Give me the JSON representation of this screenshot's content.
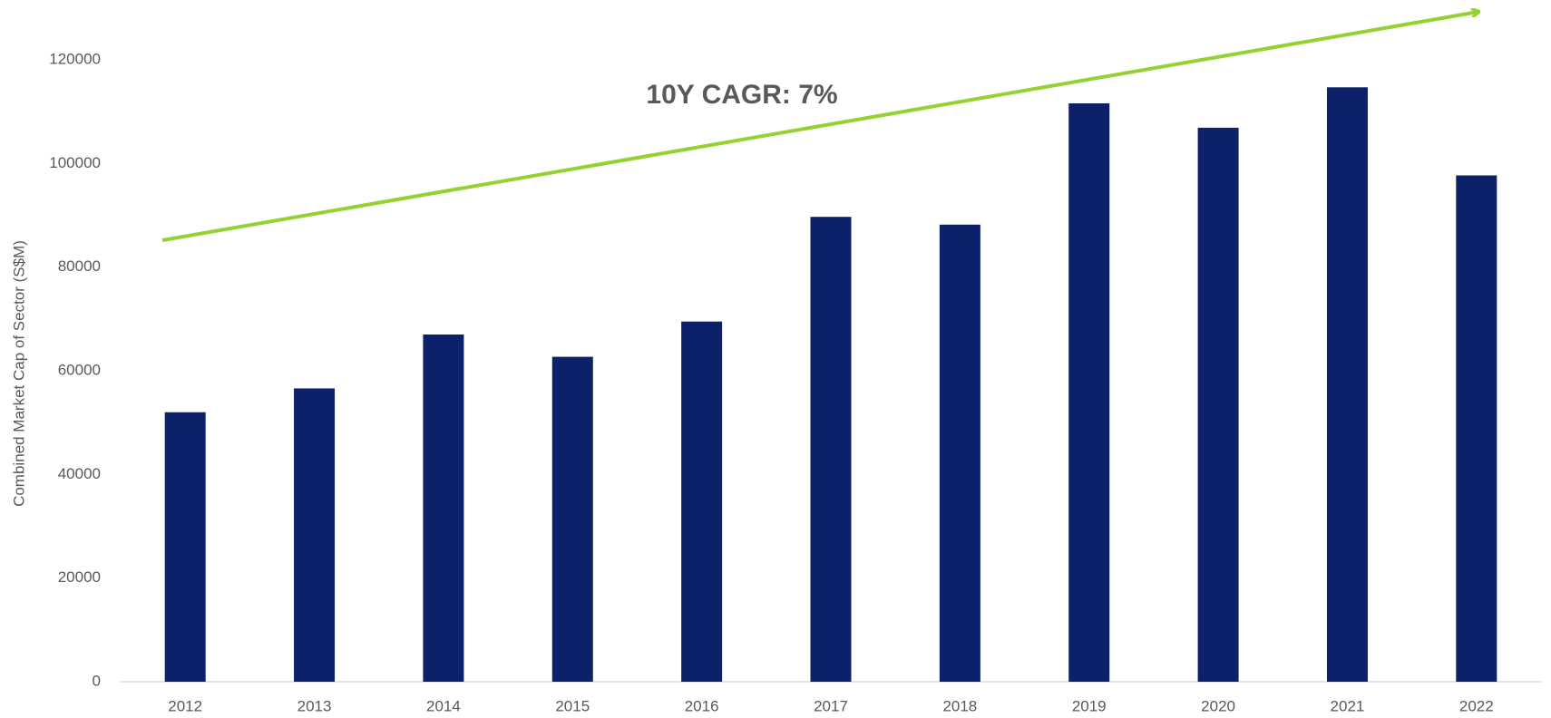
{
  "chart_data": {
    "type": "bar",
    "y_label": "Combined Market Cap of Sector (S$M)",
    "annotation": "10Y CAGR: 7%",
    "categories": [
      "2012",
      "2013",
      "2014",
      "2015",
      "2016",
      "2017",
      "2018",
      "2019",
      "2020",
      "2021",
      "2022"
    ],
    "values": [
      52000,
      56600,
      67000,
      62700,
      69500,
      89700,
      88200,
      111600,
      106900,
      114700,
      97700
    ],
    "color": "#0c2169",
    "ylim": [
      0,
      120000
    ],
    "yticks": [
      0,
      20000,
      40000,
      60000,
      80000,
      100000,
      120000
    ],
    "grid": false
  }
}
